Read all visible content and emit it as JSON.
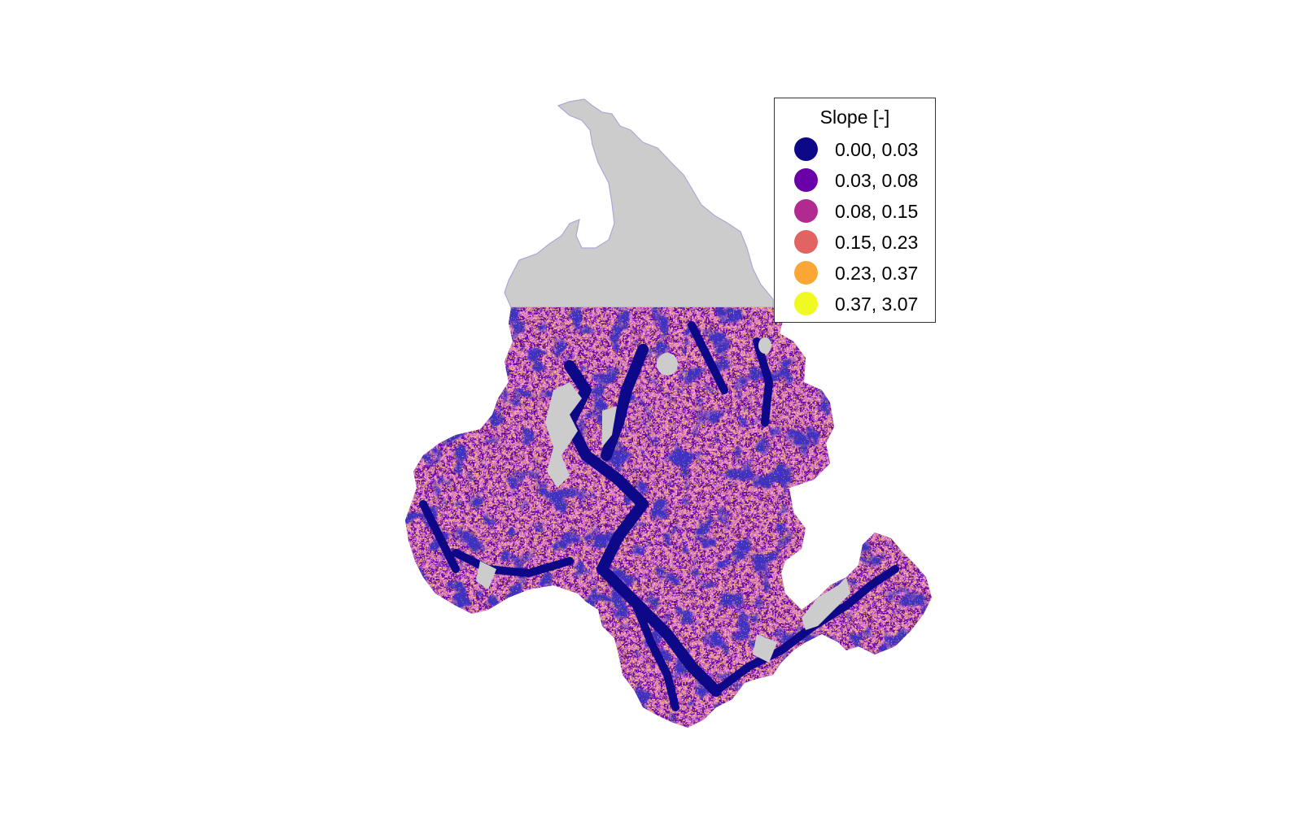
{
  "map": {
    "background_fill": "#cccccc",
    "outline_color": "#a9a9d6",
    "legend": {
      "title": "Slope [-]",
      "items": [
        {
          "label": "0.00, 0.03",
          "color": "#0d0887"
        },
        {
          "label": "0.03, 0.08",
          "color": "#6a00a8"
        },
        {
          "label": "0.08, 0.15",
          "color": "#b12a90"
        },
        {
          "label": "0.15, 0.23",
          "color": "#e16462"
        },
        {
          "label": "0.23, 0.37",
          "color": "#fca636"
        },
        {
          "label": "0.37, 3.07",
          "color": "#f0f921"
        }
      ]
    }
  }
}
